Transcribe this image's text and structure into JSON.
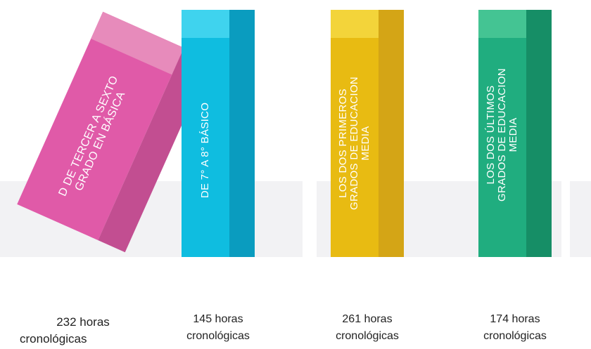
{
  "books": [
    {
      "id": "book-1",
      "lines": [
        "D DE TERCER A SEXTO",
        "GRADO EN BÁSICA"
      ],
      "caption_hours": "232 horas",
      "caption_unit": "cronológicas",
      "colors": {
        "front": "#e05aa8",
        "top": "#e78bbb",
        "side": "#c24e91"
      }
    },
    {
      "id": "book-2",
      "lines": [
        "DE 7° A 8° BÁSICO"
      ],
      "caption_hours": "145 horas",
      "caption_unit": "cronológicas",
      "colors": {
        "front": "#0fbde0",
        "top": "#3fd3ee",
        "side": "#0a9cbf"
      }
    },
    {
      "id": "book-3",
      "lines": [
        "LOS DOS PRIMEROS",
        "GRADOS DE EDUCACION",
        "MEDIA"
      ],
      "caption_hours": "261 horas",
      "caption_unit": "cronológicas",
      "colors": {
        "front": "#e8bb12",
        "top": "#f3d43a",
        "side": "#d4a516"
      }
    },
    {
      "id": "book-4",
      "lines": [
        "LOS DOS ÚLTIMOS",
        "GRADOS DE EDUCACION",
        "MEDIA"
      ],
      "caption_hours": "174 horas",
      "caption_unit": "cronológicas",
      "colors": {
        "front": "#20ad7f",
        "top": "#44c493",
        "side": "#168e66"
      }
    }
  ]
}
